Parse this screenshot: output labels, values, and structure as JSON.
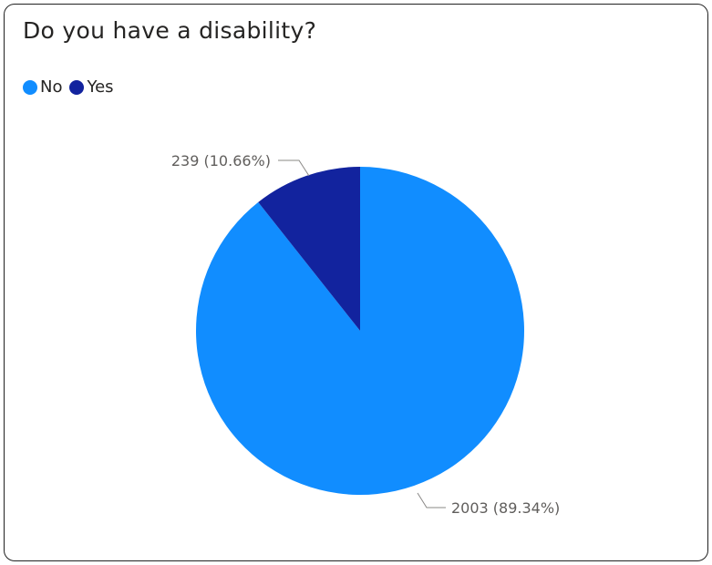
{
  "chart_data": {
    "type": "pie",
    "title": "Do you have a disability?",
    "legend_position": "top-left",
    "slices": [
      {
        "label": "No",
        "value": 2003,
        "percent": 89.34,
        "color": "#118DFF",
        "data_label": "2003 (89.34%)"
      },
      {
        "label": "Yes",
        "value": 239,
        "percent": 10.66,
        "color": "#12239E",
        "data_label": "239 (10.66%)"
      }
    ]
  }
}
